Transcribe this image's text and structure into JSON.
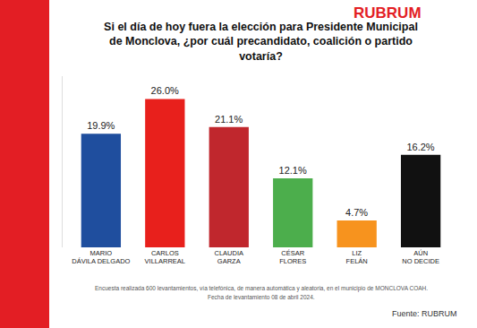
{
  "chart_data": {
    "type": "bar",
    "title": "Si el día de hoy fuera la elección para Presidente Municipal de Monclova, ¿por cuál precandidato, coalición o partido votaría?",
    "categories": [
      "MARIO DÁVILA DELGADO",
      "CARLOS VILLARREAL",
      "CLAUDIA GARZA",
      "CÉSAR FLORES",
      "LIZ FELÁN",
      "AÚN NO DECIDE"
    ],
    "values": [
      19.9,
      26.0,
      21.1,
      12.1,
      4.7,
      16.2
    ],
    "value_labels": [
      "19.9%",
      "26.0%",
      "21.1%",
      "12.1%",
      "4.7%",
      "16.2%"
    ],
    "colors": [
      "#1f4e9e",
      "#e8201c",
      "#c0272d",
      "#4cae4c",
      "#f7931e",
      "#111111"
    ],
    "data_labels": true,
    "tick_labels": "x",
    "grid": false,
    "ylim": [
      0,
      30
    ],
    "annotations": [
      "RUBRUM",
      "Encuesta realizada 600 levantamientos, vía telefónica, de manera automática y aleatoria, en el municipio de MONCLOVA COAH.",
      "Fecha de levantamiento 08 de abril 2024.",
      "Fuente: RUBRUM"
    ]
  }
}
